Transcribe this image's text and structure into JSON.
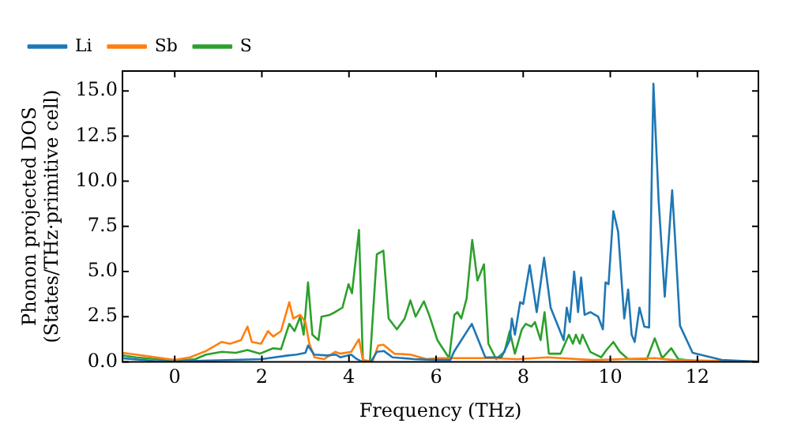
{
  "chart_data": {
    "type": "line",
    "xlabel": "Frequency (THz)",
    "ylabel": "Phonon projected DOS\n(States/THz·primitive cell)",
    "xlim": [
      -1.2,
      13.4
    ],
    "ylim": [
      0,
      16.1
    ],
    "xticks": [
      0,
      2,
      4,
      6,
      8,
      10,
      12
    ],
    "yticks": [
      {
        "value": 0,
        "label": "0.0"
      },
      {
        "value": 2.5,
        "label": "2.5"
      },
      {
        "value": 5,
        "label": "5.0"
      },
      {
        "value": 7.5,
        "label": "7.5"
      },
      {
        "value": 10,
        "label": "10.0"
      },
      {
        "value": 12.5,
        "label": "12.5"
      },
      {
        "value": 15,
        "label": "15.0"
      }
    ],
    "grid": false,
    "legend": "top left",
    "marker": "none",
    "line_style": "solid",
    "series": [
      {
        "name": "Li",
        "color": "#1f77b4",
        "x": [
          -1.2,
          -0.5,
          0,
          1,
          2,
          2.6,
          2.8,
          3.0,
          3.06,
          3.2,
          3.5,
          3.7,
          3.8,
          4.05,
          4.15,
          4.3,
          4.5,
          4.64,
          4.8,
          5.0,
          5.5,
          6.0,
          6.33,
          6.41,
          6.58,
          6.82,
          7.13,
          7.5,
          7.69,
          7.74,
          7.81,
          7.93,
          8.0,
          8.15,
          8.31,
          8.48,
          8.63,
          8.93,
          9.0,
          9.07,
          9.17,
          9.26,
          9.33,
          9.41,
          9.54,
          9.72,
          9.83,
          9.89,
          9.96,
          10.07,
          10.18,
          10.32,
          10.41,
          10.49,
          10.56,
          10.67,
          10.78,
          10.89,
          10.99,
          11.11,
          11.25,
          11.42,
          11.48,
          11.6,
          11.89,
          12.56,
          13.4
        ],
        "values": [
          0.2,
          0.05,
          0.02,
          0.08,
          0.15,
          0.35,
          0.4,
          0.5,
          0.9,
          0.4,
          0.35,
          0.4,
          0.25,
          0.4,
          0.2,
          0,
          0,
          0.55,
          0.6,
          0.25,
          0.15,
          0.1,
          0.1,
          0.55,
          1.2,
          2.1,
          0.25,
          0.25,
          1.2,
          2.4,
          1.5,
          3.3,
          3.2,
          5.35,
          2.75,
          5.76,
          3.0,
          1.2,
          3.0,
          2.2,
          5.0,
          2.75,
          4.67,
          2.6,
          2.75,
          2.5,
          1.8,
          4.4,
          4.3,
          8.34,
          7.2,
          2.4,
          4.0,
          1.5,
          1.1,
          3.0,
          1.95,
          1.9,
          15.4,
          8.9,
          3.6,
          9.5,
          7.1,
          2.0,
          0.5,
          0.1,
          0
        ]
      },
      {
        "name": "Sb",
        "color": "#ff7f0e",
        "x": [
          -1.2,
          -0.89,
          0,
          0.35,
          0.72,
          1.08,
          1.27,
          1.52,
          1.67,
          1.77,
          1.98,
          2.14,
          2.26,
          2.44,
          2.63,
          2.72,
          2.88,
          3.0,
          3.09,
          3.21,
          3.43,
          3.68,
          3.8,
          4.05,
          4.23,
          4.32,
          4.54,
          4.67,
          4.79,
          5.04,
          5.41,
          5.78,
          6.03,
          7.26,
          7.87,
          8.56,
          9.6,
          11.02,
          11.45,
          13.4
        ],
        "values": [
          0.5,
          0.4,
          0.1,
          0.25,
          0.6,
          1.1,
          1.0,
          1.2,
          1.95,
          1.1,
          1.0,
          1.7,
          1.4,
          1.7,
          3.3,
          2.4,
          2.6,
          2.2,
          1.0,
          0.25,
          0.15,
          0.55,
          0.45,
          0.55,
          1.25,
          0.1,
          0,
          0.9,
          0.95,
          0.45,
          0.4,
          0.15,
          0.2,
          0.2,
          0.15,
          0.25,
          0.1,
          0.2,
          0.1,
          0
        ]
      },
      {
        "name": "S",
        "color": "#2ca02c",
        "x": [
          -1.2,
          -0.89,
          0,
          0.47,
          0.72,
          1.08,
          1.4,
          1.67,
          1.95,
          2.26,
          2.44,
          2.63,
          2.75,
          2.88,
          2.96,
          3.06,
          3.16,
          3.3,
          3.37,
          3.56,
          3.68,
          3.85,
          3.99,
          4.07,
          4.23,
          4.32,
          4.48,
          4.64,
          4.79,
          4.91,
          5.1,
          5.28,
          5.41,
          5.53,
          5.72,
          5.84,
          6.03,
          6.3,
          6.42,
          6.49,
          6.58,
          6.7,
          6.83,
          6.95,
          7.1,
          7.2,
          7.38,
          7.57,
          7.69,
          7.81,
          7.97,
          8.06,
          8.19,
          8.27,
          8.4,
          8.49,
          8.59,
          8.86,
          9.05,
          9.14,
          9.21,
          9.3,
          9.36,
          9.54,
          9.79,
          9.91,
          10.07,
          10.22,
          10.41,
          10.66,
          10.84,
          11.02,
          11.19,
          11.4,
          11.56,
          11.95,
          13.4
        ],
        "values": [
          0.35,
          0.25,
          0.05,
          0.15,
          0.4,
          0.55,
          0.5,
          0.65,
          0.45,
          0.75,
          0.7,
          2.1,
          1.7,
          2.5,
          1.5,
          4.4,
          1.5,
          1.2,
          2.5,
          2.6,
          2.75,
          3.0,
          4.3,
          3.8,
          7.3,
          0,
          0,
          5.95,
          6.15,
          2.4,
          1.8,
          2.4,
          3.4,
          2.5,
          3.35,
          2.6,
          1.2,
          0.2,
          2.6,
          2.75,
          2.4,
          3.5,
          6.75,
          4.5,
          5.4,
          1.0,
          0.15,
          0.55,
          1.7,
          0.45,
          1.8,
          2.1,
          1.95,
          2.2,
          1.2,
          2.75,
          0.45,
          0.45,
          1.5,
          1.0,
          1.5,
          1.0,
          1.5,
          0.55,
          0.25,
          0.65,
          1.1,
          0.55,
          0.15,
          0.15,
          0.15,
          1.3,
          0.2,
          0.75,
          0.15,
          0.05,
          0
        ]
      }
    ]
  }
}
